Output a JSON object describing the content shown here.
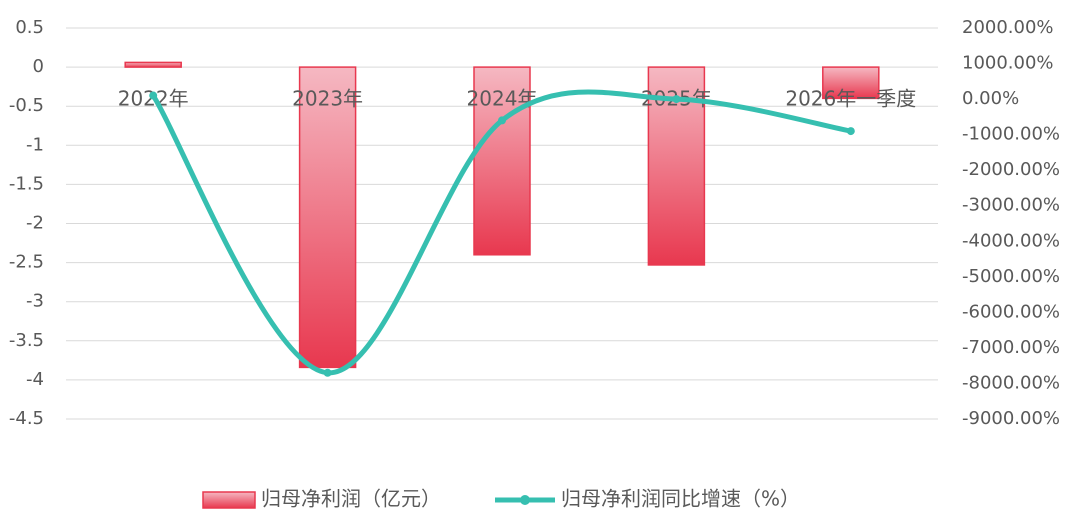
{
  "chart_data": {
    "type": "bar-line",
    "categories": [
      "2022年",
      "2023年",
      "2024年",
      "2025年",
      "2026年一季度"
    ],
    "series": [
      {
        "name": "归母净利润（亿元）",
        "type": "bar",
        "color": "#e8384f",
        "values": [
          0.06,
          -3.84,
          -2.4,
          -2.53,
          -0.4
        ]
      },
      {
        "name": "归母净利润同比增速（%）",
        "type": "line",
        "axis": "y2",
        "color": "#36bfb0",
        "values": [
          100,
          -7700,
          -600,
          0,
          -900
        ]
      }
    ],
    "ylim": [
      -4.5,
      0.5
    ],
    "yticks": [
      0.5,
      0,
      -0.5,
      -1,
      -1.5,
      -2,
      -2.5,
      -3,
      -3.5,
      -4,
      -4.5
    ],
    "y2lim": [
      -9000,
      2000
    ],
    "y2ticks": [
      {
        "value": 2000,
        "label": "2000.00%"
      },
      {
        "value": 1000,
        "label": "1000.00%"
      },
      {
        "value": 0,
        "label": "0.00%"
      },
      {
        "value": -1000,
        "label": "-1000.00%"
      },
      {
        "value": -2000,
        "label": "-2000.00%"
      },
      {
        "value": -3000,
        "label": "-3000.00%"
      },
      {
        "value": -4000,
        "label": "-4000.00%"
      },
      {
        "value": -5000,
        "label": "-5000.00%"
      },
      {
        "value": -6000,
        "label": "-6000.00%"
      },
      {
        "value": -7000,
        "label": "-7000.00%"
      },
      {
        "value": -8000,
        "label": "-8000.00%"
      },
      {
        "value": -9000,
        "label": "-9000.00%"
      }
    ],
    "grid": true,
    "legend": "bottom"
  }
}
